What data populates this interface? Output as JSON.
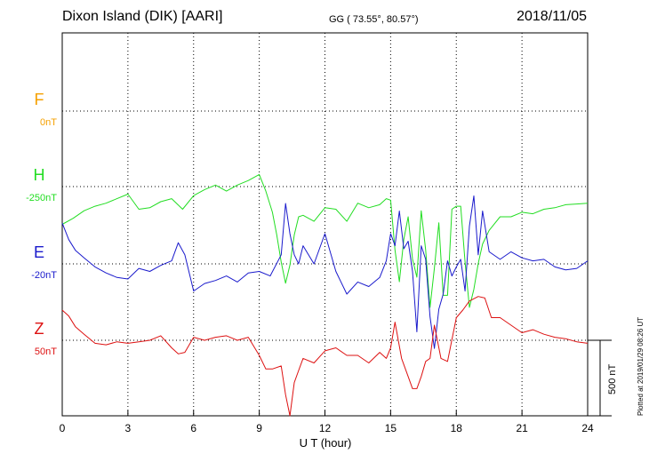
{
  "header": {
    "station": "Dixon Island (DIK)  [AARI]",
    "coords": "GG ( 73.55°,  80.57°)",
    "date": "2018/11/05"
  },
  "footer": {
    "plotted": "Plotted at 2019/01/29 08:26 UT"
  },
  "colors": {
    "F": "#f5a000",
    "H": "#22dd22",
    "E": "#1a1acc",
    "Z": "#dd1111"
  },
  "chart_data": {
    "type": "line",
    "xlabel": "U T (hour)",
    "xlim": [
      0,
      24
    ],
    "xticks": [
      "0",
      "3",
      "6",
      "9",
      "12",
      "15",
      "18",
      "21",
      "24"
    ],
    "scale_bar_label": "500 nT",
    "scale_bar_nT": 500,
    "series": [
      {
        "name": "F",
        "baseline_label": "0nT",
        "color": "#f5a000",
        "x": [],
        "y": []
      },
      {
        "name": "H",
        "baseline_label": "-250nT",
        "color": "#22dd22",
        "x": [
          0,
          0.5,
          1,
          1.5,
          2,
          2.5,
          3,
          3.5,
          4,
          4.5,
          5,
          5.5,
          6,
          6.5,
          7,
          7.5,
          8,
          8.5,
          9,
          9.3,
          9.6,
          9.8,
          10,
          10.2,
          10.4,
          10.6,
          10.8,
          11,
          11.5,
          12,
          12.5,
          13,
          13.5,
          14,
          14.5,
          14.8,
          15,
          15.2,
          15.4,
          15.6,
          15.8,
          16,
          16.2,
          16.4,
          16.6,
          16.8,
          17,
          17.2,
          17.4,
          17.6,
          17.8,
          18,
          18.2,
          18.4,
          18.6,
          18.8,
          19,
          19.2,
          19.5,
          20,
          20.5,
          21,
          21.5,
          22,
          22.5,
          23,
          23.5,
          24
        ],
        "y": [
          -250,
          -210,
          -160,
          -130,
          -110,
          -80,
          -50,
          -150,
          -140,
          -100,
          -80,
          -150,
          -60,
          -20,
          10,
          -30,
          10,
          40,
          80,
          -30,
          -170,
          -320,
          -500,
          -640,
          -520,
          -320,
          -200,
          -190,
          -230,
          -140,
          -150,
          -230,
          -110,
          -140,
          -120,
          -80,
          -90,
          -420,
          -630,
          -350,
          -200,
          -480,
          -600,
          -160,
          -420,
          -800,
          -540,
          -240,
          -720,
          -720,
          -150,
          -130,
          -130,
          -500,
          -800,
          -680,
          -510,
          -380,
          -290,
          -200,
          -200,
          -170,
          -180,
          -150,
          -140,
          -120,
          -115,
          -110
        ]
      },
      {
        "name": "E",
        "baseline_label": "-20nT",
        "color": "#1a1acc",
        "x": [
          0,
          0.3,
          0.6,
          1,
          1.5,
          2,
          2.5,
          3,
          3.5,
          4,
          4.5,
          5,
          5.3,
          5.6,
          6,
          6.5,
          7,
          7.5,
          8,
          8.5,
          9,
          9.5,
          10,
          10.2,
          10.4,
          10.6,
          10.8,
          11,
          11.5,
          12,
          12.5,
          13,
          13.5,
          14,
          14.5,
          14.8,
          15,
          15.2,
          15.4,
          15.6,
          15.8,
          16,
          16.2,
          16.4,
          16.6,
          16.8,
          17,
          17.2,
          17.4,
          17.6,
          17.8,
          18,
          18.2,
          18.4,
          18.6,
          18.8,
          19,
          19.2,
          19.5,
          20,
          20.5,
          21,
          21.5,
          22,
          22.5,
          23,
          23.5,
          24
        ],
        "y": [
          270,
          160,
          90,
          40,
          -20,
          -60,
          -90,
          -100,
          -30,
          -50,
          -10,
          20,
          140,
          60,
          -180,
          -130,
          -110,
          -80,
          -120,
          -60,
          -50,
          -80,
          60,
          400,
          200,
          60,
          0,
          120,
          0,
          200,
          -50,
          -200,
          -120,
          -150,
          -90,
          20,
          200,
          120,
          350,
          100,
          150,
          -50,
          -450,
          120,
          30,
          -350,
          -560,
          -300,
          -200,
          20,
          -80,
          -20,
          30,
          -180,
          250,
          450,
          60,
          350,
          80,
          30,
          80,
          40,
          20,
          30,
          -20,
          -40,
          -30,
          20
        ]
      },
      {
        "name": "Z",
        "baseline_label": "50nT",
        "color": "#dd1111",
        "x": [
          0,
          0.3,
          0.6,
          1,
          1.5,
          2,
          2.5,
          3,
          3.5,
          4,
          4.5,
          5,
          5.3,
          5.6,
          6,
          6.5,
          7,
          7.5,
          8,
          8.5,
          9,
          9.3,
          9.6,
          10,
          10.2,
          10.4,
          10.6,
          10.8,
          11,
          11.5,
          12,
          12.5,
          13,
          13.5,
          14,
          14.5,
          14.8,
          15,
          15.2,
          15.5,
          15.8,
          16,
          16.2,
          16.4,
          16.6,
          16.8,
          17,
          17.3,
          17.6,
          18,
          18.3,
          18.6,
          19,
          19.3,
          19.6,
          20,
          20.5,
          21,
          21.5,
          22,
          22.5,
          23,
          23.5,
          24
        ],
        "y": [
          200,
          160,
          90,
          40,
          -20,
          -30,
          -10,
          -20,
          -10,
          0,
          30,
          -50,
          -90,
          -80,
          20,
          0,
          20,
          30,
          0,
          20,
          -100,
          -190,
          -190,
          -170,
          -360,
          -500,
          -280,
          -200,
          -120,
          -150,
          -70,
          -50,
          -100,
          -100,
          -150,
          -80,
          -120,
          -50,
          120,
          -120,
          -240,
          -320,
          -320,
          -240,
          -140,
          -120,
          100,
          -120,
          -140,
          150,
          200,
          260,
          290,
          280,
          150,
          150,
          100,
          50,
          70,
          40,
          20,
          10,
          -10,
          -20
        ]
      }
    ]
  }
}
